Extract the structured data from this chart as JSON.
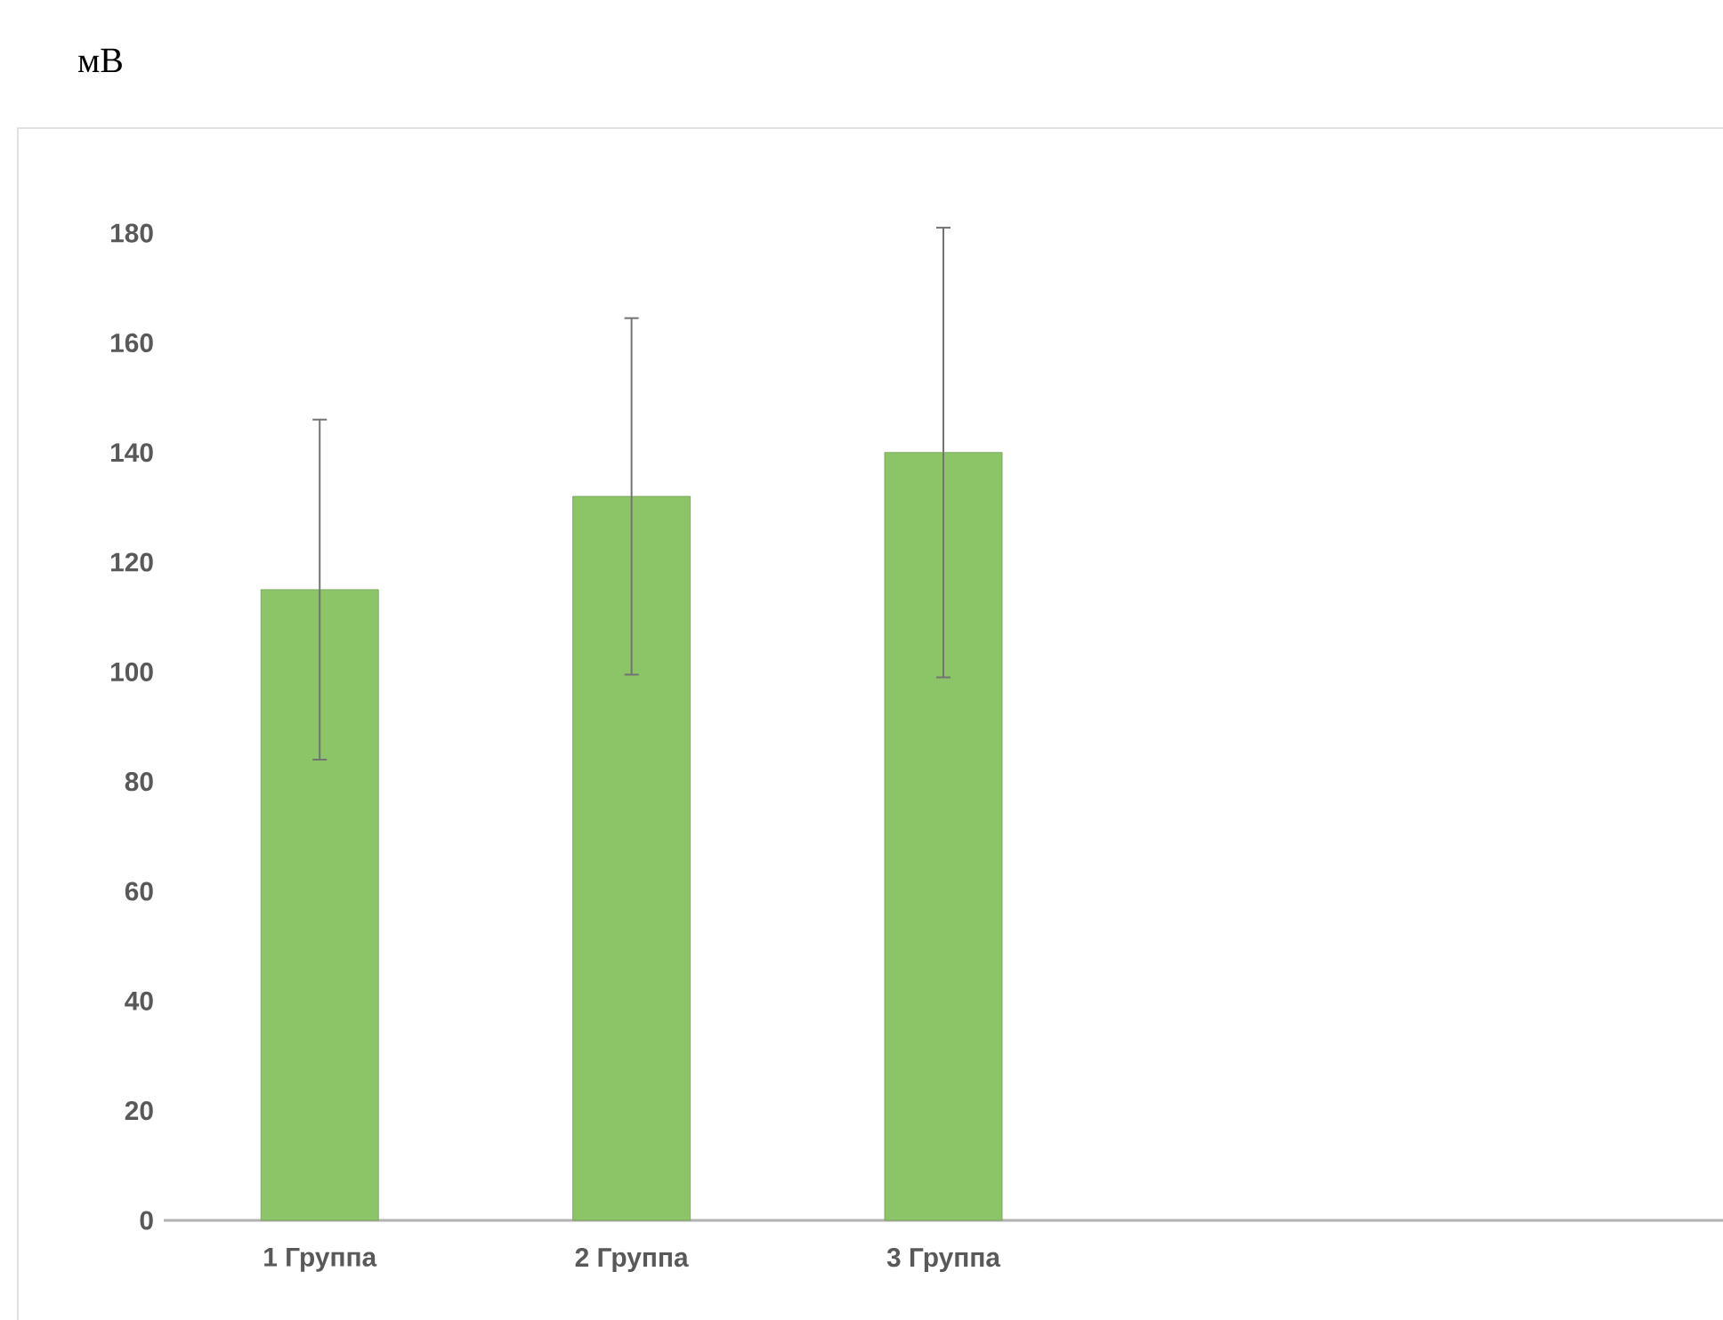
{
  "chart_data": {
    "type": "bar",
    "ylabel": "мВ",
    "categories": [
      "1 Группа",
      "2 Группа",
      "3 Группа",
      null,
      null
    ],
    "values": [
      115,
      132,
      140,
      null,
      null
    ],
    "errors": [
      31,
      32.5,
      41,
      null,
      null
    ],
    "color": "#8cc568",
    "ylim": [
      0,
      200
    ],
    "yticks": [
      0,
      20,
      40,
      60,
      80,
      100,
      120,
      140,
      160,
      180
    ]
  }
}
